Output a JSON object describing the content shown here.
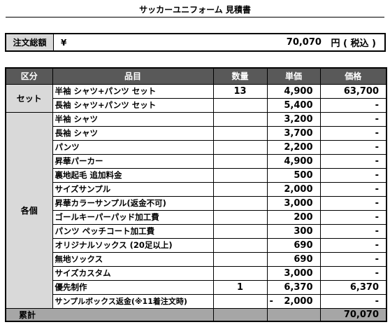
{
  "title": "サッカーユニフォーム 見積書",
  "order_total": {
    "label": "注文総額",
    "currency": "¥",
    "amount": "70,070",
    "suffix": "円 ( 税込 )"
  },
  "table": {
    "headers": [
      "区分",
      "品目",
      "数量",
      "単価",
      "価格"
    ],
    "categories": {
      "set": "セット",
      "each": "各個"
    },
    "rows": [
      {
        "item": "半袖 シャツ+パンツ セット",
        "qty": "13",
        "unit": "4,900",
        "price": "63,700"
      },
      {
        "item": "長袖 シャツ+パンツ セット",
        "qty": "",
        "unit": "5,400",
        "price": "-"
      },
      {
        "item": "半袖 シャツ",
        "qty": "",
        "unit": "3,200",
        "price": "-"
      },
      {
        "item": "長袖 シャツ",
        "qty": "",
        "unit": "3,700",
        "price": "-"
      },
      {
        "item": "パンツ",
        "qty": "",
        "unit": "2,200",
        "price": "-"
      },
      {
        "item": "昇華パーカー",
        "qty": "",
        "unit": "4,900",
        "price": "-"
      },
      {
        "item": "裏地起毛 追加料金",
        "qty": "",
        "unit": "500",
        "price": "-"
      },
      {
        "item": "サイズサンプル",
        "qty": "",
        "unit": "2,000",
        "price": "-"
      },
      {
        "item": "昇華カラーサンプル(返金不可)",
        "qty": "",
        "unit": "3,000",
        "price": "-"
      },
      {
        "item": "ゴールキーパーパッド加工費",
        "qty": "",
        "unit": "200",
        "price": "-"
      },
      {
        "item": "パンツ ペッチコート加工費",
        "qty": "",
        "unit": "300",
        "price": "-"
      },
      {
        "item": "オリジナルソックス (20足以上)",
        "qty": "",
        "unit": "690",
        "price": "-"
      },
      {
        "item": "無地ソックス",
        "qty": "",
        "unit": "690",
        "price": "-"
      },
      {
        "item": "サイズカスタム",
        "qty": "",
        "unit": "3,000",
        "price": "-"
      },
      {
        "item": "優先制作",
        "qty": "1",
        "unit": "6,370",
        "price": "6,370"
      },
      {
        "item": "サンプルボックス返金(※11着注文時)",
        "qty": "",
        "unit_sign": "-",
        "unit": "2,000",
        "price": "-"
      }
    ],
    "total": {
      "label": "累計",
      "amount": "70,070"
    }
  }
}
